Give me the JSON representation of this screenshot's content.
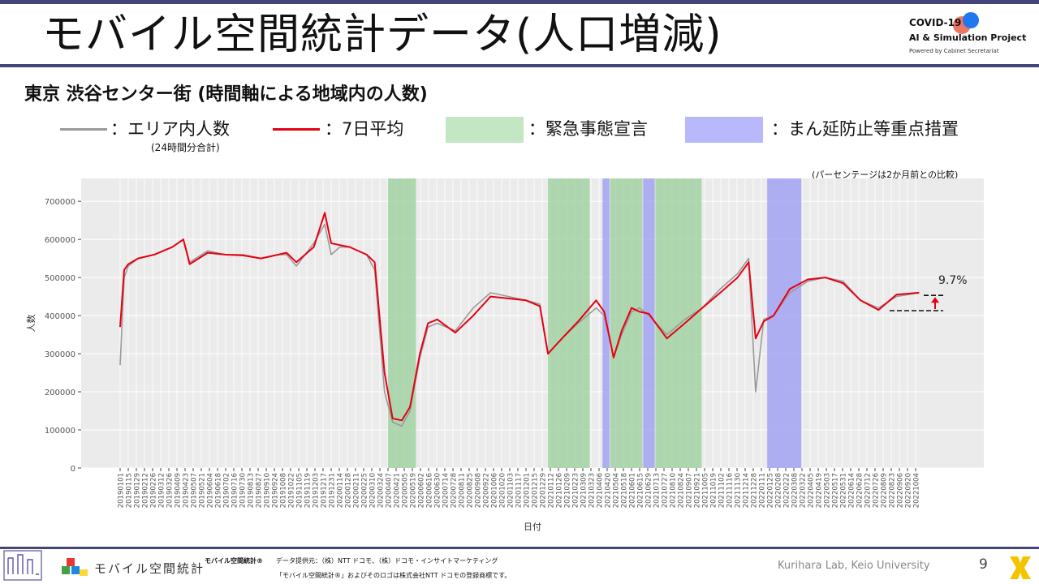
{
  "header": {
    "title": "モバイル空間統計データ(人口増減)",
    "logo_line1": "COVID-19",
    "logo_line2": "AI & Simulation Project",
    "logo_line3": "Powered by Cabinet Secretariat"
  },
  "subtitle": "東京 渋谷センター街 (時間軸による地域内の人数)",
  "legend": {
    "raw_label": "：エリア内人数",
    "raw_note": "(24時間分合計)",
    "avg_label": "：7日平均",
    "emergency_label": "：緊急事態宣言",
    "semi_label": "：まん延防止等重点措置"
  },
  "colors": {
    "raw": "#9a9a9a",
    "avg": "#e60012",
    "emergency": "#9fd19f",
    "semi": "#9e9ef2",
    "plot_bg": "#ebebeb",
    "accent": "#45457a"
  },
  "note_pct": "(パーセンテージは2か月前との比較)",
  "chart_data": {
    "type": "line",
    "xlabel": "日付",
    "ylabel": "人数",
    "ylim": [
      0,
      760000
    ],
    "y_ticks": [
      0,
      100000,
      200000,
      300000,
      400000,
      500000,
      600000,
      700000
    ],
    "x_ticks": [
      "20190101",
      "20190115",
      "20190129",
      "20190212",
      "20190226",
      "20190312",
      "20190326",
      "20190409",
      "20190423",
      "20190507",
      "20190521",
      "20190604",
      "20190618",
      "20190702",
      "20190716",
      "20190730",
      "20190813",
      "20190827",
      "20190910",
      "20190924",
      "20191008",
      "20191022",
      "20191105",
      "20191119",
      "20191203",
      "20191217",
      "20191231",
      "20200114",
      "20200128",
      "20200211",
      "20200225",
      "20200310",
      "20200324",
      "20200407",
      "20200421",
      "20200505",
      "20200519",
      "20200602",
      "20200616",
      "20200630",
      "20200714",
      "20200728",
      "20200811",
      "20200825",
      "20200908",
      "20200922",
      "20201006",
      "20201020",
      "20201103",
      "20201117",
      "20201201",
      "20201215",
      "20201229",
      "20210112",
      "20210126",
      "20210209",
      "20210223",
      "20210309",
      "20210323",
      "20210406",
      "20210420",
      "20210504",
      "20210518",
      "20210601",
      "20210615",
      "20210629",
      "20210713",
      "20210727",
      "20210810",
      "20210824",
      "20210907",
      "20210921",
      "20211005",
      "20211019",
      "20211102",
      "20211116",
      "20211130",
      "20211214",
      "20211228",
      "20220111",
      "20220125",
      "20220208",
      "20220222",
      "20220308",
      "20220322",
      "20220405",
      "20220419",
      "20220503",
      "20220517",
      "20220531",
      "20220614",
      "20220628",
      "20220712",
      "20220726",
      "20220809",
      "20220823",
      "20220906",
      "20220920",
      "20221004"
    ],
    "grid": true,
    "emergency_periods": [
      [
        "20200407",
        "20200525"
      ],
      [
        "20210108",
        "20210321"
      ],
      [
        "20210425",
        "20210620"
      ],
      [
        "20210712",
        "20210930"
      ]
    ],
    "semi_emergency_periods": [
      [
        "20210412",
        "20210424"
      ],
      [
        "20210621",
        "20210711"
      ],
      [
        "20220121",
        "20220321"
      ]
    ],
    "series": [
      {
        "name": "エリア内人数",
        "x": [
          "20190101",
          "20190108",
          "20190115",
          "20190201",
          "20190301",
          "20190401",
          "20190420",
          "20190501",
          "20190601",
          "20190701",
          "20190801",
          "20190901",
          "20191001",
          "20191015",
          "20191101",
          "20191201",
          "20191220",
          "20191231",
          "20200115",
          "20200201",
          "20200301",
          "20200315",
          "20200401",
          "20200415",
          "20200501",
          "20200515",
          "20200601",
          "20200615",
          "20200701",
          "20200801",
          "20200901",
          "20201001",
          "20201101",
          "20201201",
          "20201225",
          "20210108",
          "20210201",
          "20210301",
          "20210401",
          "20210415",
          "20210501",
          "20210515",
          "20210601",
          "20210615",
          "20210701",
          "20210801",
          "20210901",
          "20211001",
          "20211101",
          "20211201",
          "20211220",
          "20220101",
          "20220115",
          "20220201",
          "20220301",
          "20220401",
          "20220501",
          "20220601",
          "20220701",
          "20220801",
          "20220901",
          "20221010"
        ],
        "values": [
          270000,
          500000,
          530000,
          550000,
          560000,
          580000,
          600000,
          540000,
          570000,
          560000,
          560000,
          550000,
          560000,
          560000,
          530000,
          590000,
          640000,
          560000,
          580000,
          580000,
          560000,
          520000,
          200000,
          120000,
          110000,
          150000,
          290000,
          370000,
          380000,
          360000,
          420000,
          460000,
          450000,
          440000,
          430000,
          300000,
          340000,
          380000,
          420000,
          400000,
          290000,
          350000,
          410000,
          420000,
          400000,
          350000,
          390000,
          420000,
          470000,
          510000,
          550000,
          200000,
          390000,
          400000,
          460000,
          490000,
          500000,
          490000,
          440000,
          420000,
          450000,
          460000
        ]
      },
      {
        "name": "7日平均",
        "x": [
          "20190101",
          "20190108",
          "20190115",
          "20190201",
          "20190301",
          "20190401",
          "20190420",
          "20190501",
          "20190601",
          "20190701",
          "20190801",
          "20190901",
          "20191001",
          "20191015",
          "20191101",
          "20191201",
          "20191220",
          "20191231",
          "20200115",
          "20200201",
          "20200301",
          "20200315",
          "20200401",
          "20200415",
          "20200501",
          "20200515",
          "20200601",
          "20200615",
          "20200701",
          "20200801",
          "20200901",
          "20201001",
          "20201101",
          "20201201",
          "20201225",
          "20210108",
          "20210201",
          "20210301",
          "20210401",
          "20210415",
          "20210501",
          "20210515",
          "20210601",
          "20210615",
          "20210701",
          "20210801",
          "20210901",
          "20211001",
          "20211101",
          "20211201",
          "20211220",
          "20220101",
          "20220115",
          "20220201",
          "20220301",
          "20220401",
          "20220501",
          "20220601",
          "20220701",
          "20220801",
          "20220901",
          "20221010"
        ],
        "values": [
          370000,
          520000,
          535000,
          550000,
          560000,
          580000,
          600000,
          535000,
          565000,
          560000,
          558000,
          550000,
          560000,
          565000,
          540000,
          580000,
          670000,
          590000,
          585000,
          580000,
          560000,
          540000,
          250000,
          130000,
          125000,
          160000,
          300000,
          380000,
          390000,
          355000,
          400000,
          450000,
          445000,
          440000,
          425000,
          300000,
          340000,
          385000,
          440000,
          410000,
          290000,
          360000,
          420000,
          410000,
          405000,
          340000,
          380000,
          420000,
          460000,
          500000,
          540000,
          340000,
          385000,
          400000,
          470000,
          495000,
          500000,
          485000,
          440000,
          415000,
          455000,
          460000
        ]
      }
    ],
    "annotation": {
      "label": "9.7%",
      "from_value": 413000,
      "to_value": 453000
    }
  }
}
